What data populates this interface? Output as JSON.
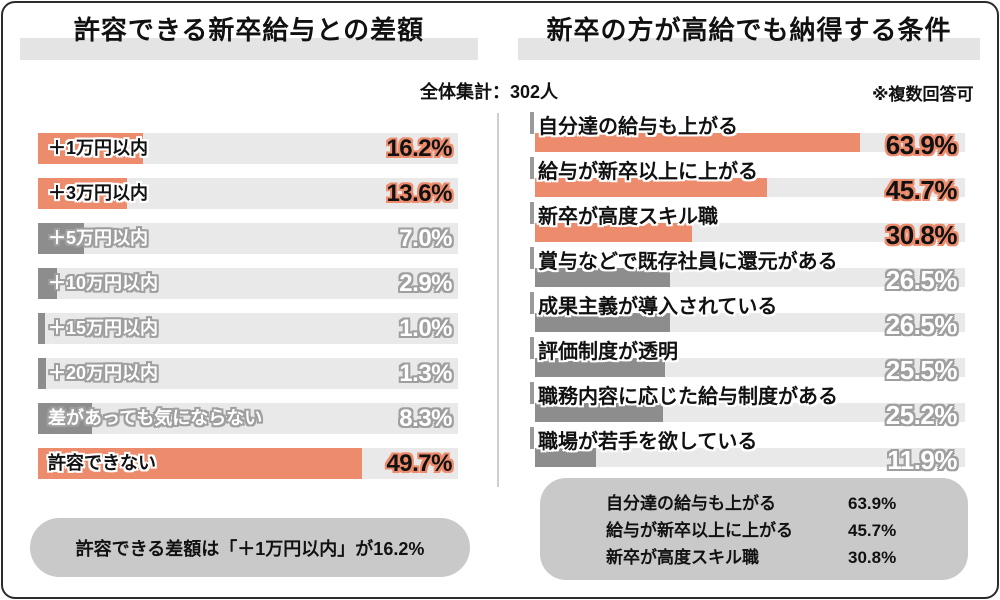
{
  "header": {
    "sample_note": "全体集計：302人",
    "multi_note": "※複数回答可"
  },
  "left_panel": {
    "title": "許容できる新卒給与との差額",
    "summary": "許容できる差額は「＋1万円以内」が16.2%"
  },
  "right_panel": {
    "title": "新卒の方が高給でも納得する条件",
    "summary_rows": [
      {
        "label": "自分達の給与も上がる",
        "value": "63.9%"
      },
      {
        "label": "給与が新卒以上に上がる",
        "value": "45.7%"
      },
      {
        "label": "新卒が高度スキル職",
        "value": "30.8%"
      }
    ]
  },
  "chart_data": [
    {
      "type": "bar",
      "title": "許容できる新卒給与との差額",
      "orientation": "horizontal",
      "categories": [
        "＋1万円以内",
        "＋3万円以内",
        "＋5万円以内",
        "＋10万円以内",
        "＋15万円以内",
        "＋20万円以内",
        "差があっても気にならない",
        "許容できない"
      ],
      "values": [
        16.2,
        13.6,
        7.0,
        2.9,
        1.0,
        1.3,
        8.3,
        49.7
      ],
      "value_labels": [
        "16.2%",
        "13.6%",
        "7.0%",
        "2.9%",
        "1.0%",
        "1.3%",
        "8.3%",
        "49.7%"
      ],
      "highlighted": [
        true,
        true,
        false,
        false,
        false,
        false,
        false,
        true
      ],
      "unit": "%",
      "grid": false,
      "layout": {
        "pct_to_track_width_factor": 1.55
      }
    },
    {
      "type": "bar",
      "title": "新卒の方が高給でも納得する条件",
      "orientation": "horizontal",
      "categories": [
        "自分達の給与も上がる",
        "給与が新卒以上に上がる",
        "新卒が高度スキル職",
        "賞与などで既存社員に還元がある",
        "成果主義が導入されている",
        "評価制度が透明",
        "職務内容に応じた給与制度がある",
        "職場が若手を欲している"
      ],
      "values": [
        63.9,
        45.7,
        30.8,
        26.5,
        26.5,
        25.5,
        25.2,
        11.9
      ],
      "value_labels": [
        "63.9%",
        "45.7%",
        "30.8%",
        "26.5%",
        "26.5%",
        "25.5%",
        "25.2%",
        "11.9%"
      ],
      "highlighted": [
        true,
        true,
        true,
        false,
        false,
        false,
        false,
        false
      ],
      "unit": "%",
      "grid": false,
      "layout": {
        "pct_to_track_width_factor": 1.183
      }
    }
  ],
  "colors": {
    "accent_orange": "#ec8c6d",
    "bar_dark_gray": "#8d8d8d",
    "bar_track": "#e9e9e9",
    "title_highlight": "#e4e4e4",
    "summary_box_gray": "#c9c9c9",
    "outline_gray": "#9f9f9f",
    "outline_white": "#ffffff",
    "text_black": "#111111"
  }
}
